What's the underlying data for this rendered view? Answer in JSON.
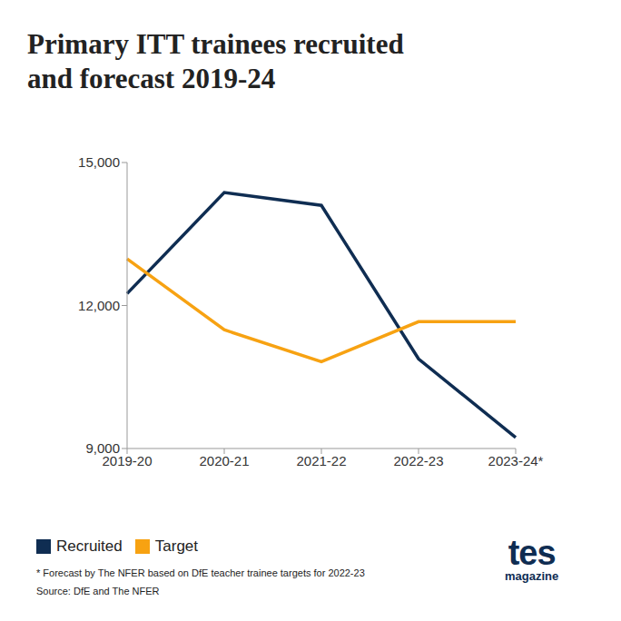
{
  "chart_data": {
    "type": "line",
    "title": [
      "Primary ITT trainees recruited",
      "and forecast 2019-24"
    ],
    "categories": [
      "2019-20",
      "2020-21",
      "2021-22",
      "2022-23",
      "2023-24*"
    ],
    "series": [
      {
        "name": "Recruited",
        "color": "#0f2d52",
        "marker": "none",
        "values": [
          12250,
          14370,
          14100,
          10880,
          9230
        ]
      },
      {
        "name": "Target",
        "color": "#f7a212",
        "marker": "none",
        "values": [
          12980,
          11490,
          10820,
          11660,
          11660
        ]
      }
    ],
    "ylim": [
      9000,
      15000
    ],
    "yticks": [
      {
        "value": 9000,
        "label": "9,000"
      },
      {
        "value": 12000,
        "label": "12,000"
      },
      {
        "value": 15000,
        "label": "15,000"
      }
    ],
    "grid": false,
    "legend": "bottom-left",
    "footnote": "* Forecast by The NFER based on DfE teacher trainee targets for 2022-23",
    "source": "Source: DfE and The NFER",
    "logo": [
      "tes",
      "magazine"
    ]
  }
}
